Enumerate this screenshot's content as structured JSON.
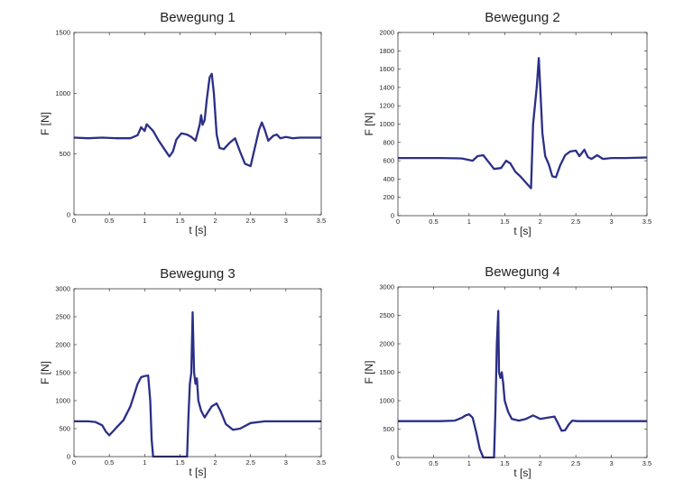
{
  "chart_data": [
    {
      "type": "line",
      "title": "Bewegung 1",
      "xlabel": "t [s]",
      "ylabel": "F [N]",
      "xlim": [
        0,
        3.5
      ],
      "ylim": [
        0,
        1500
      ],
      "xticks": [
        "0",
        "0.5",
        "1",
        "1.5",
        "2",
        "2.5",
        "3",
        "3.5"
      ],
      "yticks": [
        "0",
        "500",
        "1000",
        "1500"
      ],
      "grid": false,
      "color": "#2b2f86",
      "series": [
        {
          "x": [
            0,
            0.2,
            0.4,
            0.6,
            0.8,
            0.9,
            0.95,
            1.0,
            1.03,
            1.07,
            1.12,
            1.2,
            1.28,
            1.35,
            1.4,
            1.45,
            1.52,
            1.6,
            1.66,
            1.72,
            1.78,
            1.8,
            1.82,
            1.85,
            1.88,
            1.92,
            1.95,
            1.98,
            2.02,
            2.06,
            2.12,
            2.2,
            2.28,
            2.35,
            2.42,
            2.5,
            2.56,
            2.62,
            2.66,
            2.7,
            2.75,
            2.82,
            2.87,
            2.92,
            3.0,
            3.1,
            3.2,
            3.3,
            3.5
          ],
          "y": [
            635,
            630,
            635,
            630,
            630,
            655,
            720,
            690,
            745,
            720,
            690,
            610,
            540,
            480,
            520,
            620,
            670,
            660,
            640,
            610,
            740,
            820,
            740,
            780,
            950,
            1130,
            1160,
            1000,
            660,
            550,
            540,
            590,
            630,
            520,
            420,
            400,
            550,
            700,
            760,
            700,
            610,
            650,
            660,
            630,
            640,
            630,
            635,
            635,
            635
          ]
        }
      ]
    },
    {
      "type": "line",
      "title": "Bewegung 2",
      "xlabel": "t [s]",
      "ylabel": "F [N]",
      "xlim": [
        0,
        3.5
      ],
      "ylim": [
        0,
        2000
      ],
      "xticks": [
        "0",
        "0.5",
        "1",
        "1.5",
        "2",
        "2.5",
        "3",
        "3.5"
      ],
      "yticks": [
        "0",
        "200",
        "400",
        "600",
        "800",
        "1000",
        "1200",
        "1400",
        "1600",
        "1800",
        "2000"
      ],
      "grid": false,
      "color": "#2b2f86",
      "series": [
        {
          "x": [
            0,
            0.3,
            0.6,
            0.9,
            1.05,
            1.12,
            1.2,
            1.28,
            1.35,
            1.45,
            1.52,
            1.58,
            1.65,
            1.72,
            1.8,
            1.87,
            1.9,
            1.95,
            1.98,
            2.0,
            2.03,
            2.07,
            2.12,
            2.17,
            2.22,
            2.28,
            2.35,
            2.42,
            2.5,
            2.55,
            2.58,
            2.62,
            2.67,
            2.72,
            2.8,
            2.88,
            3.0,
            3.2,
            3.5
          ],
          "y": [
            630,
            630,
            630,
            625,
            600,
            650,
            660,
            580,
            510,
            520,
            600,
            570,
            480,
            430,
            360,
            300,
            1000,
            1400,
            1720,
            1400,
            900,
            650,
            560,
            430,
            420,
            550,
            660,
            700,
            710,
            650,
            680,
            720,
            640,
            620,
            660,
            620,
            630,
            630,
            635
          ]
        }
      ]
    },
    {
      "type": "line",
      "title": "Bewegung 3",
      "xlabel": "t [s]",
      "ylabel": "F [N]",
      "xlim": [
        0,
        3.5
      ],
      "ylim": [
        0,
        3000
      ],
      "xticks": [
        "0",
        "0.5",
        "1",
        "1.5",
        "2",
        "2.5",
        "3",
        "3.5"
      ],
      "yticks": [
        "0",
        "500",
        "1000",
        "1500",
        "2000",
        "2500",
        "3000"
      ],
      "grid": false,
      "color": "#2b2f86",
      "series": [
        {
          "x": [
            0,
            0.2,
            0.3,
            0.4,
            0.45,
            0.5,
            0.55,
            0.6,
            0.7,
            0.8,
            0.9,
            0.95,
            1.0,
            1.05,
            1.08,
            1.1,
            1.12,
            1.6,
            1.62,
            1.64,
            1.66,
            1.68,
            1.7,
            1.72,
            1.74,
            1.76,
            1.8,
            1.85,
            1.9,
            1.95,
            2.02,
            2.08,
            2.15,
            2.25,
            2.35,
            2.5,
            2.7,
            3.0,
            3.3,
            3.5
          ],
          "y": [
            630,
            630,
            620,
            560,
            450,
            380,
            450,
            520,
            650,
            900,
            1300,
            1420,
            1440,
            1450,
            1000,
            300,
            0,
            0,
            700,
            1300,
            1500,
            2580,
            1500,
            1300,
            1400,
            1000,
            820,
            700,
            800,
            900,
            950,
            800,
            580,
            480,
            500,
            600,
            630,
            630,
            630,
            630
          ]
        }
      ]
    },
    {
      "type": "line",
      "title": "Bewegung 4",
      "xlabel": "t [s]",
      "ylabel": "F [N]",
      "xlim": [
        0,
        3.5
      ],
      "ylim": [
        0,
        3000
      ],
      "xticks": [
        "0",
        "0.5",
        "1",
        "1.5",
        "2",
        "2.5",
        "3",
        "3.5"
      ],
      "yticks": [
        "0",
        "500",
        "1000",
        "1500",
        "2000",
        "2500",
        "3000"
      ],
      "grid": false,
      "color": "#2b2f86",
      "series": [
        {
          "x": [
            0,
            0.3,
            0.6,
            0.8,
            0.9,
            0.95,
            1.0,
            1.05,
            1.1,
            1.15,
            1.2,
            1.25,
            1.3,
            1.35,
            1.37,
            1.39,
            1.41,
            1.42,
            1.44,
            1.46,
            1.48,
            1.5,
            1.55,
            1.6,
            1.7,
            1.8,
            1.9,
            2.0,
            2.1,
            2.2,
            2.25,
            2.3,
            2.35,
            2.4,
            2.45,
            2.52,
            2.6,
            2.8,
            3.0,
            3.5
          ],
          "y": [
            640,
            640,
            640,
            650,
            700,
            740,
            760,
            700,
            450,
            150,
            0,
            0,
            0,
            0,
            800,
            2000,
            2580,
            1500,
            1400,
            1500,
            1300,
            1000,
            800,
            680,
            650,
            680,
            740,
            680,
            700,
            720,
            600,
            470,
            480,
            580,
            650,
            640,
            640,
            640,
            640,
            640
          ]
        }
      ]
    }
  ]
}
